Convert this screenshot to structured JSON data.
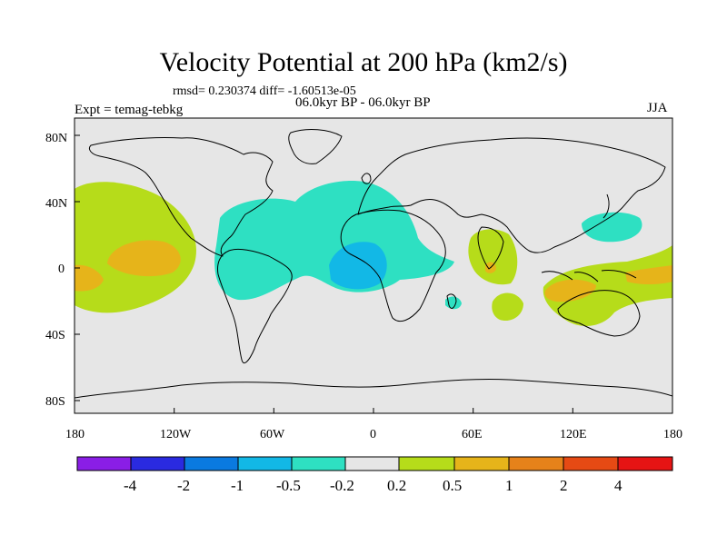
{
  "title": "Velocity Potential at 200 hPa (km2/s)",
  "stats": "rmsd= 0.230374 diff= -1.60513e-05",
  "period": "06.0kyr BP - 06.0kyr BP",
  "experiment": "Expt = temag-tebkg",
  "season": "JJA",
  "axes": {
    "lat_ticks": [
      "80N",
      "40N",
      "0",
      "40S",
      "80S"
    ],
    "lon_ticks": [
      "180",
      "120W",
      "60W",
      "0",
      "60E",
      "120E",
      "180"
    ]
  },
  "colorbar": {
    "labels": [
      "-4",
      "-2",
      "-1",
      "-0.5",
      "-0.2",
      "0.2",
      "0.5",
      "1",
      "2",
      "4"
    ],
    "colors": [
      "#8a1ee6",
      "#2a2ae0",
      "#0a7ae0",
      "#12b8e6",
      "#2ee0c2",
      "#e6e6e6",
      "#b6dc1a",
      "#e6b41a",
      "#e6821a",
      "#e64a14",
      "#e61414"
    ]
  },
  "colors": {
    "background": "#e6e6e6",
    "coast": "#000000"
  }
}
